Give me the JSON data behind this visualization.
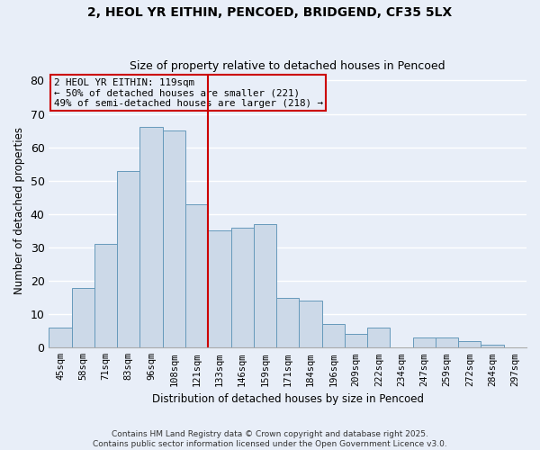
{
  "title1": "2, HEOL YR EITHIN, PENCOED, BRIDGEND, CF35 5LX",
  "title2": "Size of property relative to detached houses in Pencoed",
  "xlabel": "Distribution of detached houses by size in Pencoed",
  "ylabel": "Number of detached properties",
  "categories": [
    "45sqm",
    "58sqm",
    "71sqm",
    "83sqm",
    "96sqm",
    "108sqm",
    "121sqm",
    "133sqm",
    "146sqm",
    "159sqm",
    "171sqm",
    "184sqm",
    "196sqm",
    "209sqm",
    "222sqm",
    "234sqm",
    "247sqm",
    "259sqm",
    "272sqm",
    "284sqm",
    "297sqm"
  ],
  "values": [
    6,
    18,
    31,
    53,
    66,
    65,
    43,
    35,
    36,
    37,
    15,
    14,
    7,
    4,
    6,
    0,
    3,
    3,
    2,
    1,
    0
  ],
  "bar_color": "#ccd9e8",
  "bar_edge_color": "#6699bb",
  "vline_x_index": 6,
  "vline_color": "#cc0000",
  "annotation_title": "2 HEOL YR EITHIN: 119sqm",
  "annotation_line1": "← 50% of detached houses are smaller (221)",
  "annotation_line2": "49% of semi-detached houses are larger (218) →",
  "annotation_box_color": "#cc0000",
  "ylim": [
    0,
    82
  ],
  "yticks": [
    0,
    10,
    20,
    30,
    40,
    50,
    60,
    70,
    80
  ],
  "background_color": "#e8eef8",
  "grid_color": "#ffffff",
  "footer": "Contains HM Land Registry data © Crown copyright and database right 2025.\nContains public sector information licensed under the Open Government Licence v3.0."
}
